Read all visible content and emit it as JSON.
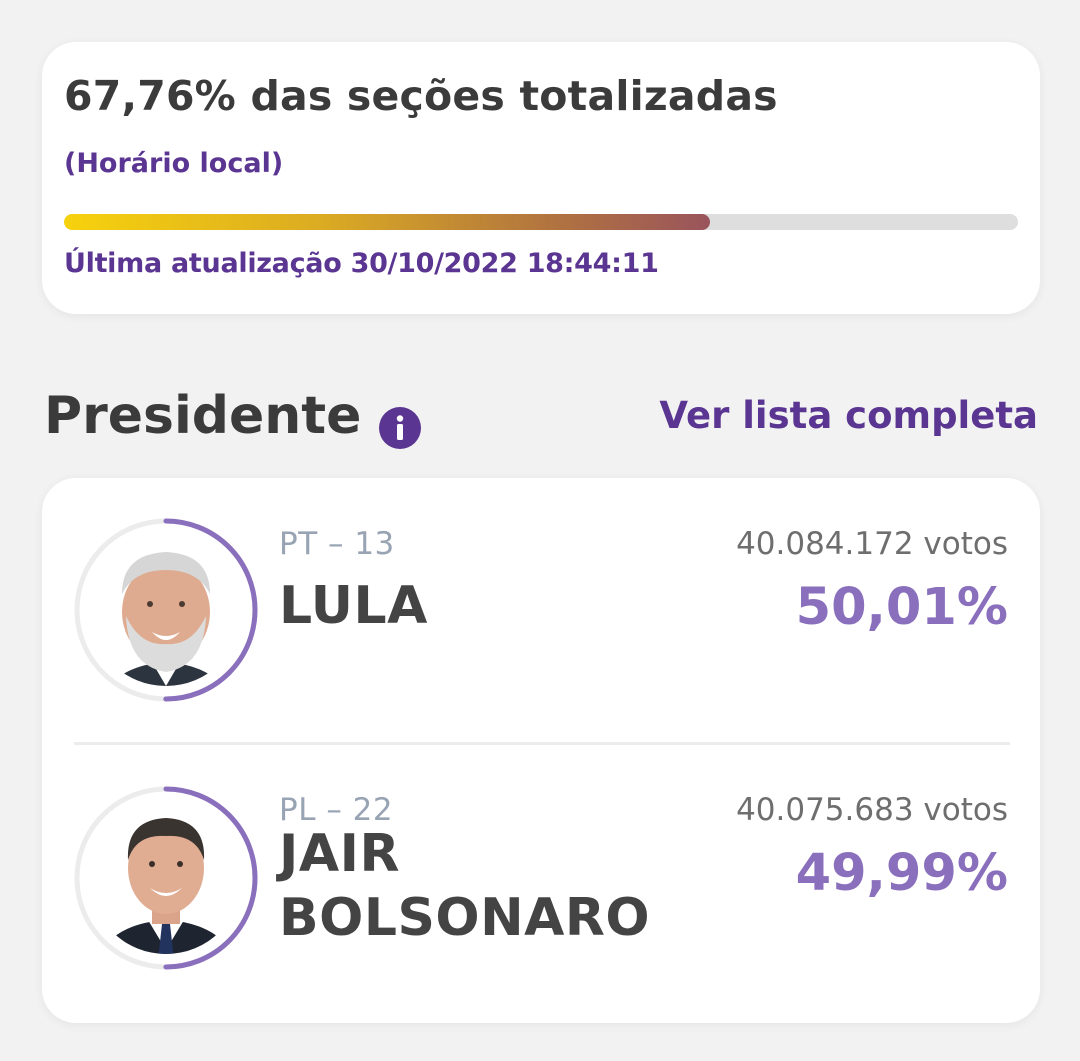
{
  "status": {
    "title": "67,76% das seções totalizadas",
    "subtitle": "(Horário local)",
    "progress_percent": 67.76,
    "last_update": "Última atualização 30/10/2022 18:44:11"
  },
  "section": {
    "title": "Presidente",
    "info_icon": "info-icon",
    "full_list_link": "Ver lista completa"
  },
  "colors": {
    "accent": "#5a3591",
    "percent": "#8a6fbd",
    "ring": "#8a6fbd"
  },
  "candidates": [
    {
      "party": "PT – 13",
      "name": "LULA",
      "votes": "40.084.172 votos",
      "percent": "50,01%",
      "percent_value": 50.01
    },
    {
      "party": "PL – 22",
      "name": "JAIR BOLSONARO",
      "votes": "40.075.683 votos",
      "percent": "49,99%",
      "percent_value": 49.99
    }
  ]
}
